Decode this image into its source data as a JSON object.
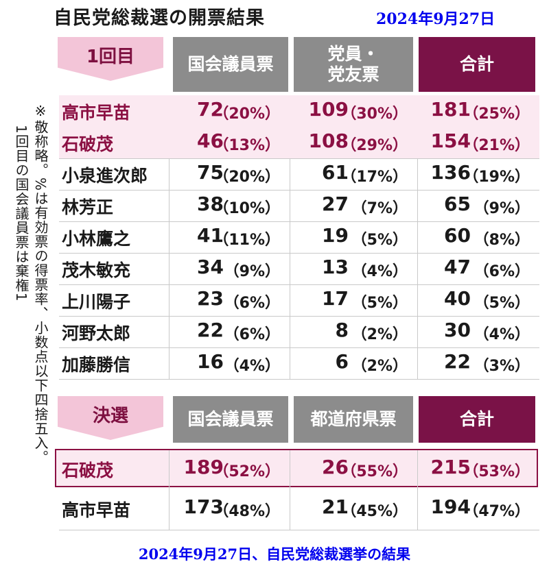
{
  "title": "自民党総裁選の開票結果",
  "date_top": "2024年9月27日",
  "note_lines": [
    "※敬称略。%は有効票の得票率、小数点以下四捨五入。",
    "1回目の国会議員票は棄権1"
  ],
  "round1": {
    "label": "1回目",
    "headers": [
      "国会議員票",
      "党員・\n党友票",
      "合計"
    ],
    "rows": [
      {
        "name": "高市早苗",
        "v1": "72",
        "p1": "（20%）",
        "v2": "109",
        "p2": "（30%）",
        "v3": "181",
        "p3": "（25%）",
        "highlight": true
      },
      {
        "name": "石破茂",
        "v1": "46",
        "p1": "（13%）",
        "v2": "108",
        "p2": "（29%）",
        "v3": "154",
        "p3": "（21%）",
        "highlight": true
      },
      {
        "name": "小泉進次郎",
        "v1": "75",
        "p1": "（20%）",
        "v2": "61",
        "p2": "（17%）",
        "v3": "136",
        "p3": "（19%）"
      },
      {
        "name": "林芳正",
        "v1": "38",
        "p1": "（10%）",
        "v2": "27",
        "p2": "（7%）",
        "v3": "65",
        "p3": "（9%）"
      },
      {
        "name": "小林鷹之",
        "v1": "41",
        "p1": "（11%）",
        "v2": "19",
        "p2": "（5%）",
        "v3": "60",
        "p3": "（8%）"
      },
      {
        "name": "茂木敏充",
        "v1": "34",
        "p1": "（9%）",
        "v2": "13",
        "p2": "（4%）",
        "v3": "47",
        "p3": "（6%）"
      },
      {
        "name": "上川陽子",
        "v1": "23",
        "p1": "（6%）",
        "v2": "17",
        "p2": "（5%）",
        "v3": "40",
        "p3": "（5%）"
      },
      {
        "name": "河野太郎",
        "v1": "22",
        "p1": "（6%）",
        "v2": "8",
        "p2": "（2%）",
        "v3": "30",
        "p3": "（4%）"
      },
      {
        "name": "加藤勝信",
        "v1": "16",
        "p1": "（4%）",
        "v2": "6",
        "p2": "（2%）",
        "v3": "22",
        "p3": "（3%）"
      }
    ]
  },
  "final": {
    "label": "決選",
    "headers": [
      "国会議員票",
      "都道府県票",
      "合計"
    ],
    "rows": [
      {
        "name": "石破茂",
        "v1": "189",
        "p1": "（52%）",
        "v2": "26",
        "p2": "（55%）",
        "v3": "215",
        "p3": "（53%）",
        "highlight": true
      },
      {
        "name": "高市早苗",
        "v1": "173",
        "p1": "（48%）",
        "v2": "21",
        "p2": "（45%）",
        "v3": "194",
        "p3": "（47%）"
      }
    ]
  },
  "date_bottom": "2024年9月27日、自民党総裁選挙の結果",
  "colors": {
    "accent": "#7a1247",
    "header_gray": "#8c8c8c",
    "tab_pink": "#f3c5d8",
    "highlight_bg": "#fbe9f1",
    "blue_text": "#0000ee"
  }
}
